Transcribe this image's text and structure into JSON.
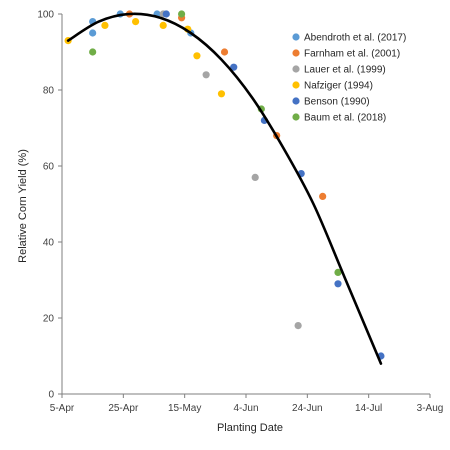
{
  "chart_data": {
    "type": "scatter",
    "title": "",
    "xlabel": "Planting Date",
    "ylabel": "Relative Corn Yield (%)",
    "x_ticks": [
      "5-Apr",
      "25-Apr",
      "15-May",
      "4-Jun",
      "24-Jun",
      "14-Jul",
      "3-Aug"
    ],
    "x_tick_dates": [
      "04-05",
      "04-25",
      "05-15",
      "06-04",
      "06-24",
      "07-14",
      "08-03"
    ],
    "xlim": [
      "04-05",
      "08-03"
    ],
    "ylim": [
      0,
      100
    ],
    "y_ticks": [
      0,
      20,
      40,
      60,
      80,
      100
    ],
    "grid": false,
    "legend_position": "top-right",
    "series": [
      {
        "name": "Abendroth et al. (2017)",
        "color": "#5B9BD5",
        "points": [
          {
            "x": "04-15",
            "y": 98
          },
          {
            "x": "04-15",
            "y": 95
          },
          {
            "x": "04-24",
            "y": 100
          },
          {
            "x": "05-06",
            "y": 100
          },
          {
            "x": "05-17",
            "y": 95
          }
        ]
      },
      {
        "name": "Farnham et al. (2001)",
        "color": "#ED7D31",
        "points": [
          {
            "x": "04-27",
            "y": 100
          },
          {
            "x": "05-14",
            "y": 99
          },
          {
            "x": "05-28",
            "y": 90
          },
          {
            "x": "06-14",
            "y": 68
          },
          {
            "x": "06-29",
            "y": 52
          }
        ]
      },
      {
        "name": "Lauer et al. (1999)",
        "color": "#A5A5A5",
        "points": [
          {
            "x": "05-08",
            "y": 100
          },
          {
            "x": "05-22",
            "y": 84
          },
          {
            "x": "06-07",
            "y": 57
          },
          {
            "x": "06-21",
            "y": 18
          }
        ]
      },
      {
        "name": "Nafziger (1994)",
        "color": "#FFC000",
        "points": [
          {
            "x": "04-07",
            "y": 93
          },
          {
            "x": "04-19",
            "y": 97
          },
          {
            "x": "04-29",
            "y": 98
          },
          {
            "x": "05-08",
            "y": 97
          },
          {
            "x": "05-16",
            "y": 96
          },
          {
            "x": "05-19",
            "y": 89
          },
          {
            "x": "05-27",
            "y": 79
          }
        ]
      },
      {
        "name": "Benson (1990)",
        "color": "#4472C4",
        "points": [
          {
            "x": "05-09",
            "y": 100
          },
          {
            "x": "05-31",
            "y": 86
          },
          {
            "x": "06-10",
            "y": 72
          },
          {
            "x": "06-22",
            "y": 58
          },
          {
            "x": "07-04",
            "y": 29
          },
          {
            "x": "07-18",
            "y": 10
          }
        ]
      },
      {
        "name": "Baum et al. (2018)",
        "color": "#70AD47",
        "points": [
          {
            "x": "04-15",
            "y": 90
          },
          {
            "x": "05-14",
            "y": 100
          },
          {
            "x": "06-09",
            "y": 75
          },
          {
            "x": "07-04",
            "y": 32
          }
        ]
      }
    ],
    "trend_line": {
      "color": "#000000",
      "points": [
        {
          "x": "04-07",
          "y": 93
        },
        {
          "x": "04-17",
          "y": 98
        },
        {
          "x": "04-27",
          "y": 100
        },
        {
          "x": "05-07",
          "y": 99
        },
        {
          "x": "05-17",
          "y": 95
        },
        {
          "x": "05-27",
          "y": 88
        },
        {
          "x": "06-06",
          "y": 78
        },
        {
          "x": "06-16",
          "y": 65
        },
        {
          "x": "06-26",
          "y": 50
        },
        {
          "x": "07-06",
          "y": 31
        },
        {
          "x": "07-18",
          "y": 8
        }
      ]
    }
  }
}
